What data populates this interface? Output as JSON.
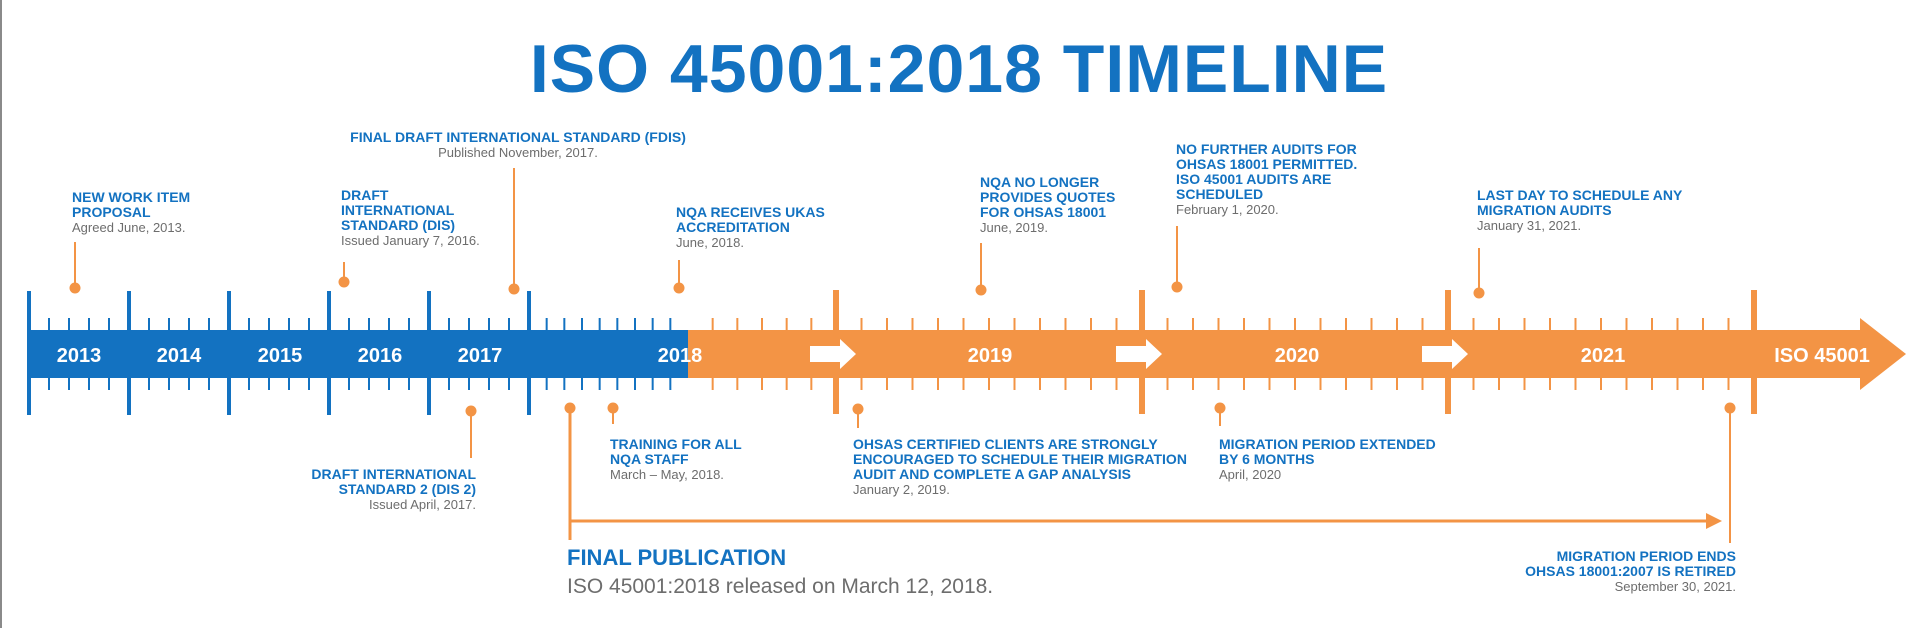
{
  "title": "ISO 45001:2018 TIMELINE",
  "colors": {
    "blue": "#1372c1",
    "orange": "#f39445",
    "grey": "#6d6d6d"
  },
  "timeline": {
    "years": [
      "2013",
      "2014",
      "2015",
      "2016",
      "2017",
      "2018",
      "2019",
      "2020",
      "2021"
    ],
    "end_label": "ISO 45001"
  },
  "events": {
    "nwip": {
      "title": "NEW WORK ITEM\nPROPOSAL",
      "detail": "Agreed June, 2013."
    },
    "fdis": {
      "title": "FINAL DRAFT INTERNATIONAL STANDARD (FDIS)",
      "detail": "Published November, 2017."
    },
    "dis": {
      "title": "DRAFT\nINTERNATIONAL\nSTANDARD (DIS)",
      "detail": "Issued January 7, 2016."
    },
    "ukas": {
      "title": "NQA RECEIVES UKAS\nACCREDITATION",
      "detail": "June, 2018."
    },
    "quotes": {
      "title": "NQA NO LONGER\nPROVIDES QUOTES\nFOR OHSAS 18001",
      "detail": "June, 2019."
    },
    "audits": {
      "title": "NO FURTHER AUDITS FOR\nOHSAS 18001 PERMITTED.\nISO 45001 AUDITS ARE\nSCHEDULED",
      "detail": "February 1, 2020."
    },
    "lastday": {
      "title": "LAST DAY TO SCHEDULE ANY\nMIGRATION AUDITS",
      "detail": "January 31, 2021."
    },
    "dis2": {
      "title": "DRAFT INTERNATIONAL\nSTANDARD 2 (DIS 2)",
      "detail": "Issued April, 2017."
    },
    "training": {
      "title": "TRAINING FOR ALL\nNQA STAFF",
      "detail": "March – May, 2018."
    },
    "ohsas": {
      "title": "OHSAS CERTIFIED CLIENTS ARE STRONGLY\nENCOURAGED TO SCHEDULE  THEIR MIGRATION\nAUDIT AND COMPLETE A GAP ANALYSIS",
      "detail": "January 2, 2019."
    },
    "extended": {
      "title": "MIGRATION PERIOD EXTENDED\nBY 6 MONTHS",
      "detail": "April, 2020"
    },
    "ends": {
      "title": "MIGRATION PERIOD ENDS\nOHSAS 18001:2007 IS RETIRED",
      "detail": "September 30, 2021."
    }
  },
  "publication": {
    "title": "FINAL PUBLICATION",
    "detail": "ISO 45001:2018 released on March 12, 2018."
  }
}
